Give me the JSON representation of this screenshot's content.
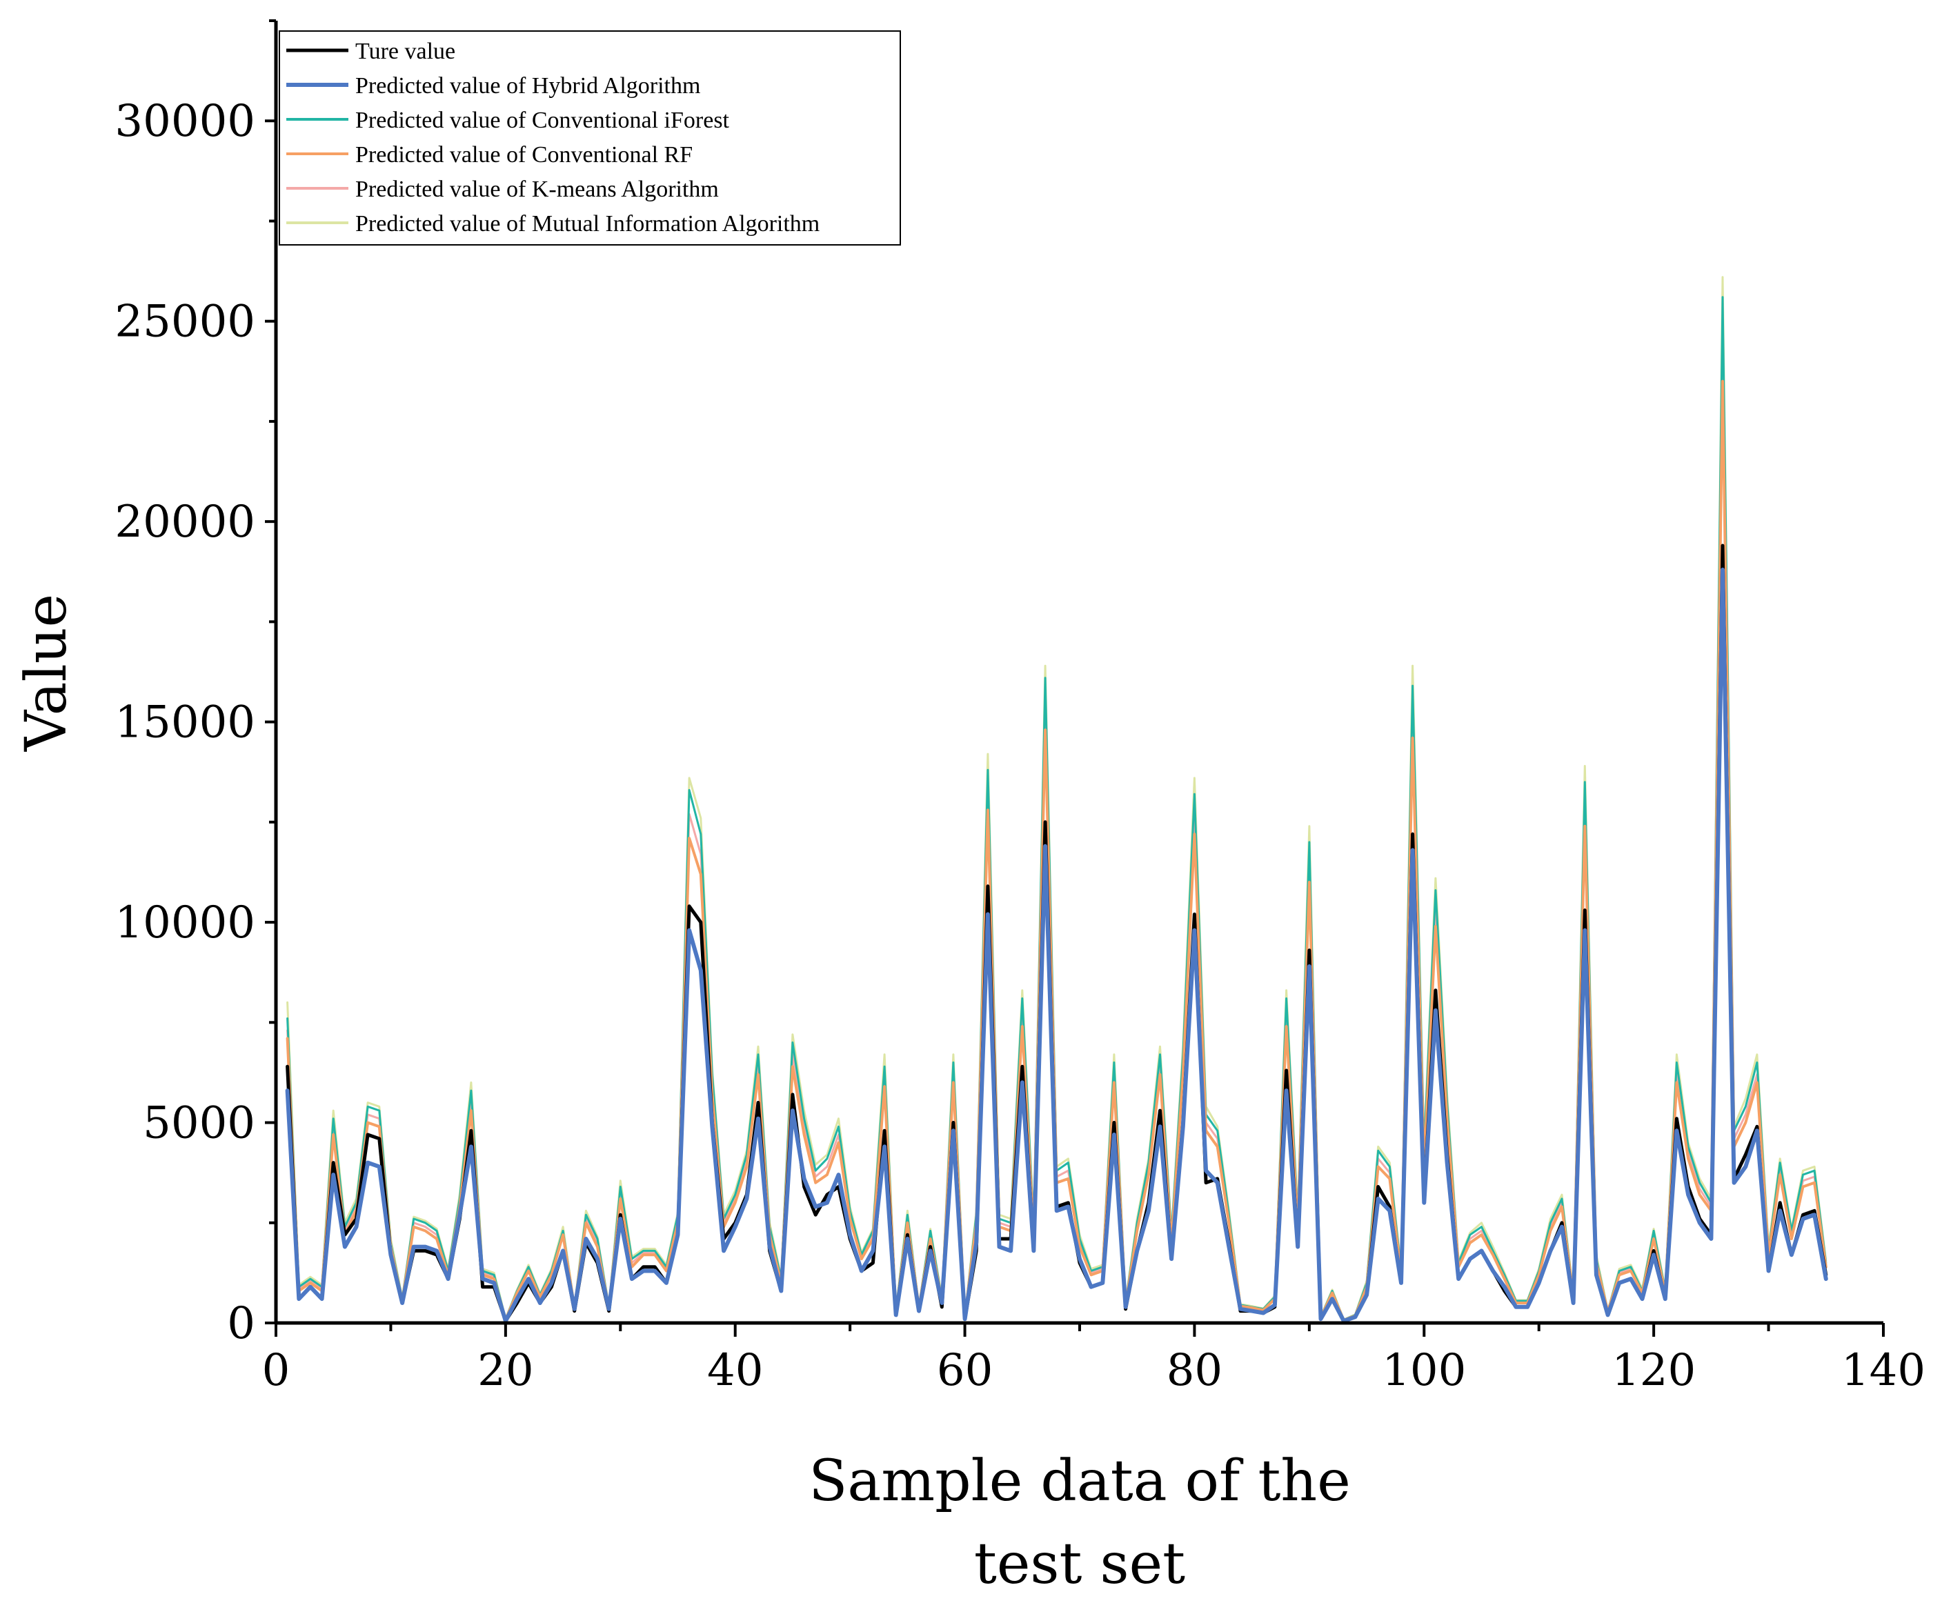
{
  "chart_data": {
    "type": "line",
    "title": "",
    "xlabel_lines": [
      "Sample data of the",
      "test set"
    ],
    "ylabel": "Value",
    "xlim": [
      0,
      140
    ],
    "ylim": [
      0,
      32500
    ],
    "xticks": [
      0,
      20,
      40,
      60,
      80,
      100,
      120,
      140
    ],
    "yticks": [
      0,
      5000,
      10000,
      15000,
      20000,
      25000,
      30000
    ],
    "x_tick_labels": [
      "0",
      "20",
      "40",
      "60",
      "80",
      "100",
      "120",
      "140"
    ],
    "y_tick_labels": [
      "0",
      "5000",
      "10000",
      "15000",
      "20000",
      "25000",
      "30000"
    ],
    "x": [
      1,
      2,
      3,
      4,
      5,
      6,
      7,
      8,
      9,
      10,
      11,
      12,
      13,
      14,
      15,
      16,
      17,
      18,
      19,
      20,
      21,
      22,
      23,
      24,
      25,
      26,
      27,
      28,
      29,
      30,
      31,
      32,
      33,
      34,
      35,
      36,
      37,
      38,
      39,
      40,
      41,
      42,
      43,
      44,
      45,
      46,
      47,
      48,
      49,
      50,
      51,
      52,
      53,
      54,
      55,
      56,
      57,
      58,
      59,
      60,
      61,
      62,
      63,
      64,
      65,
      66,
      67,
      68,
      69,
      70,
      71,
      72,
      73,
      74,
      75,
      76,
      77,
      78,
      79,
      80,
      81,
      82,
      83,
      84,
      85,
      86,
      87,
      88,
      89,
      90,
      91,
      92,
      93,
      94,
      95,
      96,
      97,
      98,
      99,
      100,
      101,
      102,
      103,
      104,
      105,
      106,
      107,
      108,
      109,
      110,
      111,
      112,
      113,
      114,
      115,
      116,
      117,
      118,
      119,
      120,
      121,
      122,
      123,
      124,
      125,
      126,
      127,
      128,
      129,
      130,
      131,
      132,
      133,
      134,
      135
    ],
    "legend_position": "top-left",
    "series": [
      {
        "name": "Ture value",
        "color": "#000000",
        "width": 5,
        "values": [
          6400,
          600,
          900,
          600,
          4000,
          2200,
          2600,
          4700,
          4600,
          1700,
          500,
          1800,
          1800,
          1700,
          1100,
          2600,
          4800,
          900,
          900,
          50,
          500,
          1000,
          500,
          900,
          1800,
          300,
          2000,
          1500,
          300,
          2700,
          1100,
          1400,
          1400,
          1000,
          2200,
          10400,
          10000,
          5000,
          2100,
          2500,
          3200,
          5500,
          1800,
          800,
          5700,
          3400,
          2700,
          3200,
          3400,
          2100,
          1300,
          1500,
          4800,
          200,
          2200,
          300,
          1900,
          400,
          5000,
          100,
          1800,
          10900,
          2100,
          2100,
          6400,
          1800,
          12500,
          2900,
          3000,
          1500,
          900,
          1000,
          5000,
          350,
          1800,
          3000,
          5300,
          1600,
          5000,
          10200,
          3500,
          3600,
          2000,
          300,
          300,
          250,
          400,
          6300,
          1900,
          9300,
          100,
          600,
          50,
          150,
          700,
          3400,
          2900,
          1000,
          12200,
          3100,
          8300,
          4200,
          1100,
          1600,
          1800,
          1300,
          800,
          400,
          400,
          1000,
          1800,
          2500,
          500,
          10300,
          1200,
          200,
          1000,
          1100,
          600,
          1800,
          600,
          5100,
          3400,
          2600,
          2200,
          19400,
          3600,
          4200,
          4900,
          1300,
          3000,
          1700,
          2700,
          2800,
          1200
        ]
      },
      {
        "name": "Predicted value of Hybrid Algorithm",
        "color": "#4d78c4",
        "width": 6,
        "values": [
          5800,
          600,
          900,
          600,
          3700,
          1900,
          2400,
          4000,
          3900,
          1700,
          500,
          1900,
          1900,
          1800,
          1100,
          2700,
          4400,
          1100,
          1000,
          50,
          600,
          1100,
          500,
          1000,
          1800,
          350,
          2100,
          1600,
          350,
          2600,
          1100,
          1300,
          1300,
          1000,
          2200,
          9800,
          8800,
          4900,
          1800,
          2400,
          3100,
          5100,
          1900,
          800,
          5300,
          3600,
          2900,
          3000,
          3700,
          2200,
          1300,
          1800,
          4400,
          200,
          2100,
          300,
          1800,
          500,
          4800,
          100,
          2000,
          10200,
          1900,
          1800,
          6000,
          1800,
          11900,
          2800,
          2900,
          1600,
          900,
          1000,
          4700,
          400,
          1800,
          2800,
          4900,
          1600,
          4900,
          9800,
          3800,
          3500,
          1900,
          350,
          300,
          250,
          450,
          5800,
          1900,
          8900,
          100,
          600,
          50,
          150,
          700,
          3100,
          2800,
          1000,
          11800,
          3000,
          7800,
          4000,
          1100,
          1600,
          1800,
          1300,
          900,
          400,
          400,
          1000,
          1800,
          2400,
          500,
          9800,
          1200,
          200,
          1000,
          1100,
          600,
          1700,
          600,
          4800,
          3200,
          2500,
          2100,
          18800,
          3500,
          3900,
          4800,
          1300,
          2800,
          1700,
          2600,
          2700,
          1100
        ]
      },
      {
        "name": "Predicted value of Conventional iForest",
        "color": "#22b5a5",
        "width": 3,
        "values": [
          7600,
          900,
          1100,
          900,
          5100,
          2400,
          3000,
          5400,
          5300,
          2000,
          600,
          2600,
          2500,
          2300,
          1300,
          3100,
          5800,
          1300,
          1200,
          100,
          800,
          1400,
          700,
          1300,
          2300,
          400,
          2700,
          2100,
          400,
          3400,
          1600,
          1800,
          1800,
          1400,
          2700,
          13300,
          12200,
          6200,
          2600,
          3200,
          4200,
          6700,
          2400,
          1100,
          7000,
          5100,
          3800,
          4100,
          4900,
          2800,
          1700,
          2300,
          6400,
          300,
          2700,
          400,
          2300,
          600,
          6500,
          150,
          2700,
          13800,
          2600,
          2500,
          8100,
          2400,
          16100,
          3800,
          4000,
          2100,
          1300,
          1400,
          6500,
          500,
          2500,
          4000,
          6700,
          2200,
          6700,
          13200,
          5200,
          4800,
          2700,
          450,
          400,
          350,
          650,
          8100,
          2600,
          12000,
          150,
          800,
          80,
          200,
          1000,
          4300,
          3900,
          1300,
          15900,
          4300,
          10800,
          5500,
          1500,
          2200,
          2400,
          1800,
          1200,
          550,
          550,
          1300,
          2500,
          3100,
          700,
          13500,
          1600,
          300,
          1300,
          1400,
          800,
          2300,
          800,
          6500,
          4400,
          3500,
          3000,
          25600,
          4800,
          5400,
          6500,
          1800,
          4000,
          2300,
          3700,
          3800,
          1500
        ]
      },
      {
        "name": "Predicted value of Conventional RF",
        "color": "#f6a064",
        "width": 4,
        "values": [
          7100,
          800,
          1000,
          800,
          4700,
          2200,
          2800,
          5000,
          4900,
          1900,
          550,
          2400,
          2300,
          2100,
          1200,
          2900,
          5300,
          1200,
          1100,
          80,
          750,
          1300,
          650,
          1200,
          2200,
          380,
          2500,
          1900,
          380,
          3100,
          1400,
          1700,
          1700,
          1300,
          2500,
          12100,
          11200,
          5700,
          2400,
          3000,
          3900,
          6200,
          2200,
          1000,
          6400,
          4700,
          3500,
          3700,
          4500,
          2600,
          1600,
          2100,
          5900,
          250,
          2500,
          380,
          2100,
          550,
          6000,
          130,
          2500,
          12800,
          2400,
          2300,
          7400,
          2200,
          14800,
          3500,
          3600,
          1900,
          1200,
          1300,
          6000,
          450,
          2300,
          3700,
          6200,
          2000,
          6200,
          12200,
          4800,
          4400,
          2500,
          420,
          380,
          320,
          600,
          7400,
          2400,
          11000,
          130,
          750,
          70,
          180,
          900,
          3900,
          3600,
          1200,
          14600,
          3900,
          9900,
          5100,
          1400,
          2000,
          2200,
          1700,
          1100,
          500,
          500,
          1200,
          2300,
          2900,
          650,
          12400,
          1500,
          280,
          1200,
          1300,
          750,
          2100,
          750,
          6000,
          4100,
          3200,
          2800,
          23500,
          4400,
          5000,
          6000,
          1700,
          3700,
          2100,
          3400,
          3500,
          1400
        ]
      },
      {
        "name": "Predicted value of K-means Algorithm",
        "color": "#f4a9a8",
        "width": 3,
        "values": [
          7300,
          850,
          1050,
          850,
          4900,
          2300,
          2900,
          5200,
          5100,
          1950,
          570,
          2500,
          2400,
          2200,
          1250,
          3000,
          5500,
          1250,
          1150,
          90,
          770,
          1350,
          680,
          1250,
          2250,
          390,
          2600,
          2000,
          390,
          3250,
          1500,
          1750,
          1750,
          1350,
          2600,
          12700,
          11700,
          5900,
          2500,
          3100,
          4000,
          6400,
          2300,
          1050,
          6700,
          4900,
          3650,
          3900,
          4700,
          2700,
          1650,
          2200,
          6100,
          280,
          2600,
          390,
          2200,
          580,
          6200,
          140,
          2600,
          13300,
          2500,
          2400,
          7700,
          2300,
          15400,
          3650,
          3800,
          2000,
          1250,
          1350,
          6200,
          470,
          2400,
          3850,
          6400,
          2100,
          6400,
          12700,
          5000,
          4600,
          2600,
          430,
          390,
          330,
          620,
          7700,
          2500,
          11500,
          140,
          770,
          75,
          190,
          950,
          4100,
          3750,
          1250,
          15200,
          4100,
          10300,
          5300,
          1450,
          2100,
          2300,
          1750,
          1150,
          520,
          520,
          1250,
          2400,
          3000,
          680,
          12900,
          1550,
          290,
          1250,
          1350,
          780,
          2200,
          780,
          6200,
          4250,
          3350,
          2900,
          24500,
          4600,
          5200,
          6200,
          1750,
          3850,
          2200,
          3550,
          3650,
          1450
        ]
      },
      {
        "name": "Predicted value of Mutual Information Algorithm",
        "color": "#dde5a3",
        "width": 3,
        "values": [
          8000,
          950,
          1150,
          950,
          5300,
          2500,
          3100,
          5500,
          5400,
          2100,
          620,
          2650,
          2550,
          2350,
          1350,
          3200,
          6000,
          1350,
          1250,
          110,
          830,
          1450,
          730,
          1350,
          2400,
          420,
          2800,
          2150,
          420,
          3550,
          1650,
          1850,
          1850,
          1450,
          2750,
          13600,
          12600,
          6300,
          2700,
          3300,
          4300,
          6900,
          2500,
          1150,
          7200,
          5300,
          3950,
          4200,
          5100,
          2900,
          1750,
          2350,
          6700,
          320,
          2800,
          420,
          2350,
          630,
          6700,
          160,
          2800,
          14200,
          2700,
          2600,
          8300,
          2500,
          16400,
          3900,
          4100,
          2200,
          1350,
          1450,
          6700,
          520,
          2600,
          4100,
          6900,
          2250,
          6900,
          13600,
          5400,
          4900,
          2800,
          470,
          420,
          360,
          680,
          8300,
          2700,
          12400,
          160,
          830,
          85,
          210,
          1050,
          4400,
          4000,
          1350,
          16400,
          4400,
          11100,
          5700,
          1550,
          2250,
          2500,
          1900,
          1250,
          570,
          570,
          1350,
          2600,
          3200,
          730,
          13900,
          1700,
          310,
          1350,
          1450,
          850,
          2350,
          850,
          6700,
          4500,
          3600,
          3100,
          26100,
          4900,
          5600,
          6700,
          1900,
          4100,
          2350,
          3800,
          3900,
          1550
        ]
      }
    ]
  }
}
